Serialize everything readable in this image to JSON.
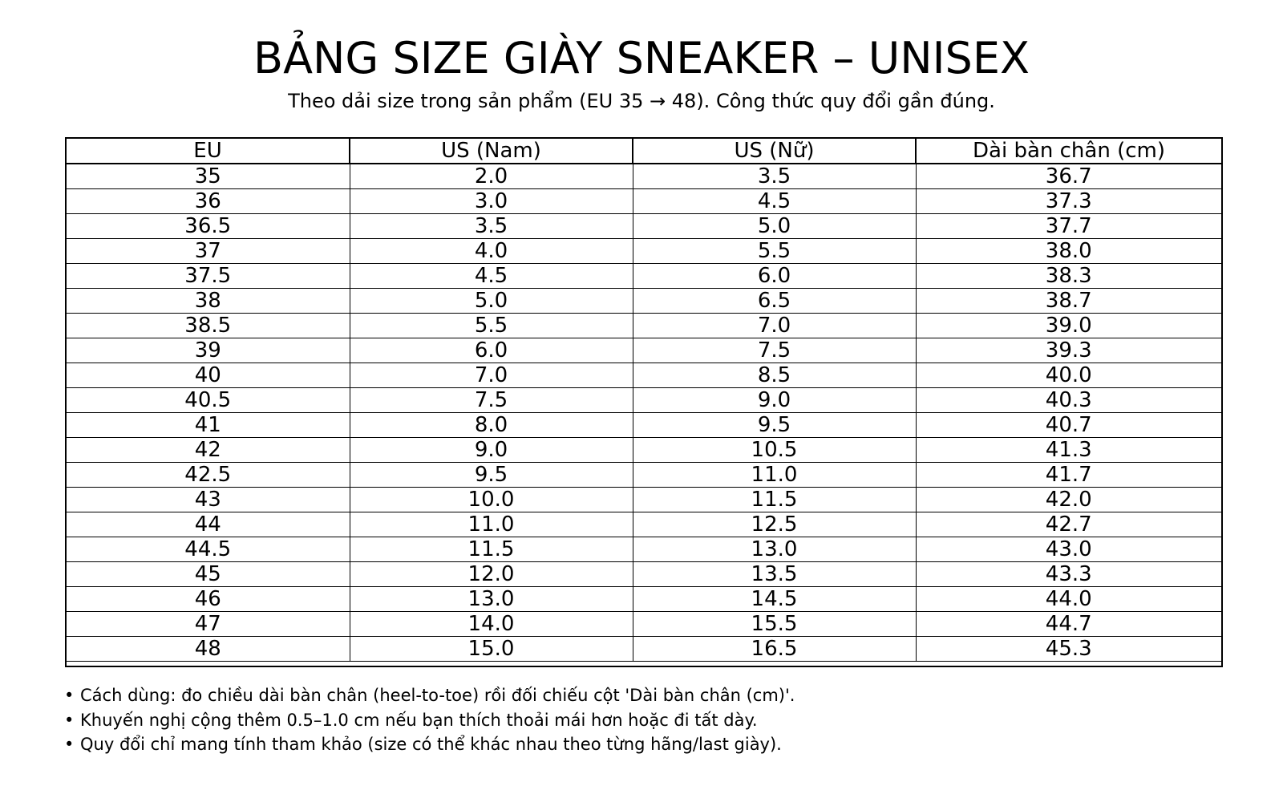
{
  "title": "BẢNG SIZE GIÀY SNEAKER – UNISEX",
  "subtitle": "Theo dải size trong sản phẩm (EU 35 → 48). Công thức quy đổi gần đúng.",
  "table": {
    "columns": [
      "EU",
      "US (Nam)",
      "US (Nữ)",
      "Dài bàn chân (cm)"
    ],
    "rows": [
      [
        "35",
        "2.0",
        "3.5",
        "36.7"
      ],
      [
        "36",
        "3.0",
        "4.5",
        "37.3"
      ],
      [
        "36.5",
        "3.5",
        "5.0",
        "37.7"
      ],
      [
        "37",
        "4.0",
        "5.5",
        "38.0"
      ],
      [
        "37.5",
        "4.5",
        "6.0",
        "38.3"
      ],
      [
        "38",
        "5.0",
        "6.5",
        "38.7"
      ],
      [
        "38.5",
        "5.5",
        "7.0",
        "39.0"
      ],
      [
        "39",
        "6.0",
        "7.5",
        "39.3"
      ],
      [
        "40",
        "7.0",
        "8.5",
        "40.0"
      ],
      [
        "40.5",
        "7.5",
        "9.0",
        "40.3"
      ],
      [
        "41",
        "8.0",
        "9.5",
        "40.7"
      ],
      [
        "42",
        "9.0",
        "10.5",
        "41.3"
      ],
      [
        "42.5",
        "9.5",
        "11.0",
        "41.7"
      ],
      [
        "43",
        "10.0",
        "11.5",
        "42.0"
      ],
      [
        "44",
        "11.0",
        "12.5",
        "42.7"
      ],
      [
        "44.5",
        "11.5",
        "13.0",
        "43.0"
      ],
      [
        "45",
        "12.0",
        "13.5",
        "43.3"
      ],
      [
        "46",
        "13.0",
        "14.5",
        "44.0"
      ],
      [
        "47",
        "14.0",
        "15.5",
        "44.7"
      ],
      [
        "48",
        "15.0",
        "16.5",
        "45.3"
      ]
    ]
  },
  "notes": {
    "bullet": "•",
    "items": [
      "Cách dùng: đo chiều dài bàn chân (heel-to-toe) rồi đối chiếu cột 'Dài bàn chân (cm)'.",
      "Khuyến nghị cộng thêm 0.5–1.0 cm nếu bạn thích thoải mái hơn hoặc đi tất dày.",
      "Quy đổi chỉ mang tính tham khảo (size có thể khác nhau theo từng hãng/last giày)."
    ]
  }
}
